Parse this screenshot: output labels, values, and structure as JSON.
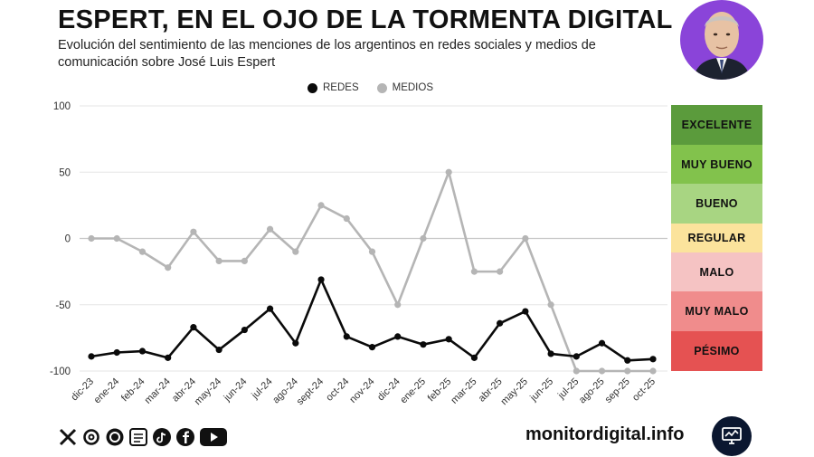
{
  "header": {
    "title": "ESPERT, EN EL OJO DE LA TORMENTA DIGITAL",
    "subtitle": "Evolución del sentimiento de las menciones de los argentinos en redes sociales y medios de comunicación sobre José Luis Espert"
  },
  "chart_data": {
    "type": "line",
    "categories": [
      "dic-23",
      "ene-24",
      "feb-24",
      "mar-24",
      "abr-24",
      "may-24",
      "jun-24",
      "jul-24",
      "ago-24",
      "sept-24",
      "oct-24",
      "nov-24",
      "dic-24",
      "ene-25",
      "feb-25",
      "mar-25",
      "abr-25",
      "may-25",
      "jun-25",
      "jul-25",
      "ago-25",
      "sep-25",
      "oct-25"
    ],
    "series": [
      {
        "name": "REDES",
        "color": "#0a0a0a",
        "values": [
          -89,
          -86,
          -85,
          -90,
          -67,
          -84,
          -69,
          -53,
          -79,
          -31,
          -74,
          -82,
          -74,
          -80,
          -76,
          -90,
          -64,
          -55,
          -87,
          -89,
          -79,
          -92,
          -91
        ]
      },
      {
        "name": "MEDIOS",
        "color": "#b5b5b5",
        "values": [
          0,
          0,
          -10,
          -22,
          5,
          -17,
          -17,
          7,
          -10,
          25,
          15,
          -10,
          -50,
          0,
          50,
          -25,
          -25,
          0,
          -50,
          -100,
          -100,
          -100,
          -100
        ]
      }
    ],
    "y_ticks": [
      "100",
      "50",
      "0",
      "-50",
      "-100"
    ],
    "ylim": [
      -100,
      100
    ],
    "legend_position": "top-center",
    "grid": true
  },
  "scale": {
    "bands": [
      {
        "label": "EXCELENTE",
        "color": "#5b9b3c"
      },
      {
        "label": "MUY BUENO",
        "color": "#82c24c"
      },
      {
        "label": "BUENO",
        "color": "#a8d582"
      },
      {
        "label": "REGULAR",
        "color": "#fbe39c"
      },
      {
        "label": "MALO",
        "color": "#f5c3c3"
      },
      {
        "label": "MUY MALO",
        "color": "#f08c8c"
      },
      {
        "label": "PÉSIMO",
        "color": "#e55252"
      }
    ]
  },
  "footer": {
    "site": "monitordigital.info",
    "social_icons": [
      "x-icon",
      "threads-icon",
      "instagram-icon",
      "newsletter-icon",
      "tiktok-icon",
      "facebook-icon",
      "youtube-icon"
    ]
  }
}
